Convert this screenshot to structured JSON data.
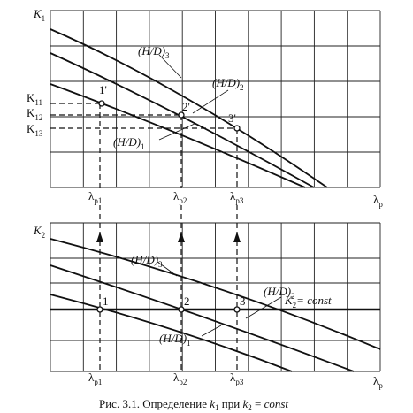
{
  "top_plot": {
    "y_label": {
      "main": "K",
      "sub": "1"
    },
    "x_label": {
      "main": "λ",
      "sub": "p"
    },
    "curve_labels": [
      {
        "main": "(H/D)",
        "sub": "3"
      },
      {
        "main": "(H/D)",
        "sub": "2"
      },
      {
        "main": "(H/D)",
        "sub": "1"
      }
    ],
    "points": [
      "1'",
      "2'",
      "3'"
    ],
    "k_labels": [
      {
        "main": "K",
        "sub": "11"
      },
      {
        "main": "K",
        "sub": "12"
      },
      {
        "main": "K",
        "sub": "13"
      }
    ],
    "lambda_labels": [
      {
        "main": "λ",
        "sub": "p1"
      },
      {
        "main": "λ",
        "sub": "p2"
      },
      {
        "main": "λ",
        "sub": "p3"
      }
    ]
  },
  "bottom_plot": {
    "y_label": {
      "main": "K",
      "sub": "2"
    },
    "x_label": {
      "main": "λ",
      "sub": "p"
    },
    "curve_labels": [
      {
        "main": "(H/D)",
        "sub": "3"
      },
      {
        "main": "(H/D)",
        "sub": "2"
      },
      {
        "main": "(H/D)",
        "sub": "1"
      }
    ],
    "const_label": {
      "main": "K",
      "sub": "2",
      "rest": "= const"
    },
    "points": [
      "1",
      "2",
      "3"
    ],
    "lambda_labels": [
      {
        "main": "λ",
        "sub": "p1"
      },
      {
        "main": "λ",
        "sub": "p2"
      },
      {
        "main": "λ",
        "sub": "p3"
      }
    ]
  },
  "caption": {
    "prefix": "Рис. 3.1. Определение ",
    "k1": {
      "main": "k",
      "sub": "1"
    },
    "mid": " при ",
    "k2": {
      "main": "k",
      "sub": "2"
    },
    "suffix": " = ",
    "const": "const"
  }
}
